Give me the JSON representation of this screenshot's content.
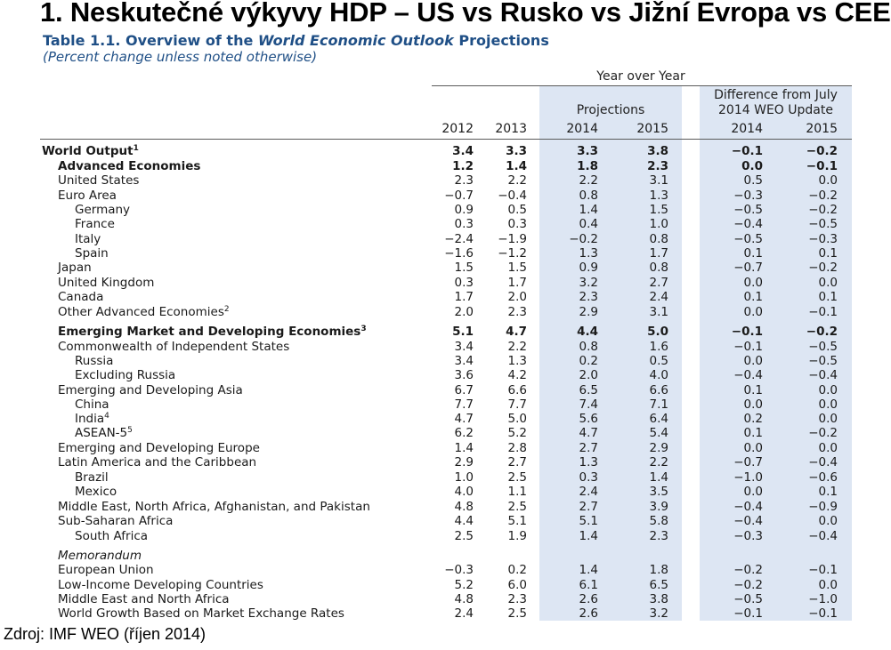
{
  "slide_title": "1. Neskutečné výkyvy HDP – US vs Rusko vs Jižní Evropa vs CEE",
  "table": {
    "title_prefix": "Table 1.1. Overview of the ",
    "title_italic": "World Economic Outlook",
    "title_suffix": " Projections",
    "subtitle": "(Percent change unless noted otherwise)",
    "group_yoy": "Year over Year",
    "group_projections": "Projections",
    "group_diff_line1": "Difference from July",
    "group_diff_line2": "2014 WEO Update",
    "columns": [
      "2012",
      "2013",
      "2014",
      "2015",
      "2014",
      "2015"
    ],
    "rows": [
      {
        "label": "World Output",
        "sup": "1",
        "indent": 0,
        "bold": true,
        "values": [
          "3.4",
          "3.3",
          "3.3",
          "3.8",
          "−0.1",
          "−0.2"
        ]
      },
      {
        "label": "Advanced Economies",
        "indent": 1,
        "bold": true,
        "values": [
          "1.2",
          "1.4",
          "1.8",
          "2.3",
          "0.0",
          "−0.1"
        ]
      },
      {
        "label": "United States",
        "indent": 1,
        "values": [
          "2.3",
          "2.2",
          "2.2",
          "3.1",
          "0.5",
          "0.0"
        ]
      },
      {
        "label": "Euro Area",
        "indent": 1,
        "values": [
          "−0.7",
          "−0.4",
          "0.8",
          "1.3",
          "−0.3",
          "−0.2"
        ]
      },
      {
        "label": "Germany",
        "indent": 2,
        "values": [
          "0.9",
          "0.5",
          "1.4",
          "1.5",
          "−0.5",
          "−0.2"
        ]
      },
      {
        "label": "France",
        "indent": 2,
        "values": [
          "0.3",
          "0.3",
          "0.4",
          "1.0",
          "−0.4",
          "−0.5"
        ]
      },
      {
        "label": "Italy",
        "indent": 2,
        "values": [
          "−2.4",
          "−1.9",
          "−0.2",
          "0.8",
          "−0.5",
          "−0.3"
        ]
      },
      {
        "label": "Spain",
        "indent": 2,
        "values": [
          "−1.6",
          "−1.2",
          "1.3",
          "1.7",
          "0.1",
          "0.1"
        ]
      },
      {
        "label": "Japan",
        "indent": 1,
        "values": [
          "1.5",
          "1.5",
          "0.9",
          "0.8",
          "−0.7",
          "−0.2"
        ]
      },
      {
        "label": "United Kingdom",
        "indent": 1,
        "values": [
          "0.3",
          "1.7",
          "3.2",
          "2.7",
          "0.0",
          "0.0"
        ]
      },
      {
        "label": "Canada",
        "indent": 1,
        "values": [
          "1.7",
          "2.0",
          "2.3",
          "2.4",
          "0.1",
          "0.1"
        ]
      },
      {
        "label": "Other Advanced Economies",
        "sup": "2",
        "indent": 1,
        "values": [
          "2.0",
          "2.3",
          "2.9",
          "3.1",
          "0.0",
          "−0.1"
        ]
      },
      {
        "label": "Emerging Market and Developing Economies",
        "sup": "3",
        "indent": 1,
        "bold": true,
        "values": [
          "5.1",
          "4.7",
          "4.4",
          "5.0",
          "−0.1",
          "−0.2"
        ]
      },
      {
        "label": "Commonwealth of Independent States",
        "indent": 1,
        "values": [
          "3.4",
          "2.2",
          "0.8",
          "1.6",
          "−0.1",
          "−0.5"
        ]
      },
      {
        "label": "Russia",
        "indent": 2,
        "values": [
          "3.4",
          "1.3",
          "0.2",
          "0.5",
          "0.0",
          "−0.5"
        ]
      },
      {
        "label": "Excluding Russia",
        "indent": 2,
        "values": [
          "3.6",
          "4.2",
          "2.0",
          "4.0",
          "−0.4",
          "−0.4"
        ]
      },
      {
        "label": "Emerging and Developing Asia",
        "indent": 1,
        "values": [
          "6.7",
          "6.6",
          "6.5",
          "6.6",
          "0.1",
          "0.0"
        ]
      },
      {
        "label": "China",
        "indent": 2,
        "values": [
          "7.7",
          "7.7",
          "7.4",
          "7.1",
          "0.0",
          "0.0"
        ]
      },
      {
        "label": "India",
        "sup": "4",
        "indent": 2,
        "values": [
          "4.7",
          "5.0",
          "5.6",
          "6.4",
          "0.2",
          "0.0"
        ]
      },
      {
        "label": "ASEAN-5",
        "sup": "5",
        "indent": 2,
        "values": [
          "6.2",
          "5.2",
          "4.7",
          "5.4",
          "0.1",
          "−0.2"
        ]
      },
      {
        "label": "Emerging and Developing Europe",
        "indent": 1,
        "values": [
          "1.4",
          "2.8",
          "2.7",
          "2.9",
          "0.0",
          "0.0"
        ]
      },
      {
        "label": "Latin America and the Caribbean",
        "indent": 1,
        "values": [
          "2.9",
          "2.7",
          "1.3",
          "2.2",
          "−0.7",
          "−0.4"
        ]
      },
      {
        "label": "Brazil",
        "indent": 2,
        "values": [
          "1.0",
          "2.5",
          "0.3",
          "1.4",
          "−1.0",
          "−0.6"
        ]
      },
      {
        "label": "Mexico",
        "indent": 2,
        "values": [
          "4.0",
          "1.1",
          "2.4",
          "3.5",
          "0.0",
          "0.1"
        ]
      },
      {
        "label": "Middle East, North Africa, Afghanistan, and Pakistan",
        "indent": 1,
        "values": [
          "4.8",
          "2.5",
          "2.7",
          "3.9",
          "−0.4",
          "−0.9"
        ]
      },
      {
        "label": "Sub-Saharan Africa",
        "indent": 1,
        "values": [
          "4.4",
          "5.1",
          "5.1",
          "5.8",
          "−0.4",
          "0.0"
        ]
      },
      {
        "label": "South Africa",
        "indent": 2,
        "values": [
          "2.5",
          "1.9",
          "1.4",
          "2.3",
          "−0.3",
          "−0.4"
        ]
      },
      {
        "label": "Memorandum",
        "indent": 1,
        "italic": true,
        "values": [
          "",
          "",
          "",
          "",
          "",
          ""
        ]
      },
      {
        "label": "European Union",
        "indent": 1,
        "values": [
          "−0.3",
          "0.2",
          "1.4",
          "1.8",
          "−0.2",
          "−0.1"
        ]
      },
      {
        "label": "Low-Income Developing Countries",
        "indent": 1,
        "values": [
          "5.2",
          "6.0",
          "6.1",
          "6.5",
          "−0.2",
          "0.0"
        ]
      },
      {
        "label": "Middle East and North Africa",
        "indent": 1,
        "values": [
          "4.8",
          "2.3",
          "2.6",
          "3.8",
          "−0.5",
          "−1.0"
        ]
      },
      {
        "label": "World Growth Based on Market Exchange Rates",
        "indent": 1,
        "values": [
          "2.4",
          "2.5",
          "2.6",
          "3.2",
          "−0.1",
          "−0.1"
        ]
      }
    ]
  },
  "source": "Zdroj: IMF WEO (říjen 2014)"
}
